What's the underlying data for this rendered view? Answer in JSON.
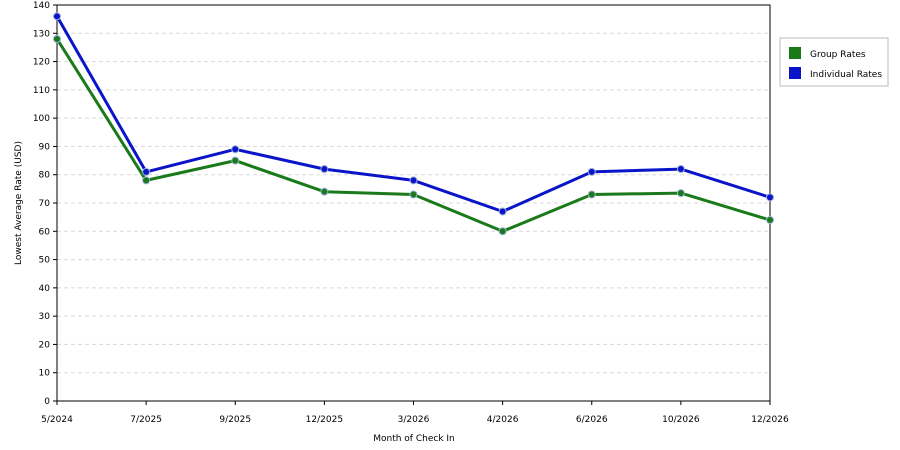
{
  "chart_data": {
    "type": "line",
    "xlabel": "Month of Check In",
    "ylabel": "Lowest Average Rate (USD)",
    "categories": [
      "5/2024",
      "7/2025",
      "9/2025",
      "12/2025",
      "3/2026",
      "4/2026",
      "6/2026",
      "10/2026",
      "12/2026"
    ],
    "ylim": [
      0,
      140
    ],
    "yticks": [
      0,
      10,
      20,
      30,
      40,
      50,
      60,
      70,
      80,
      90,
      100,
      110,
      120,
      130,
      140
    ],
    "grid": true,
    "legend_position": "top-right",
    "series": [
      {
        "name": "Group Rates",
        "color": "#1a7a1a",
        "values": [
          128,
          78,
          85,
          74,
          73,
          60,
          73,
          73.5,
          64
        ]
      },
      {
        "name": "Individual Rates",
        "color": "#0a14c8",
        "values": [
          136,
          81,
          89,
          82,
          78,
          67,
          81,
          82,
          72
        ]
      }
    ]
  }
}
